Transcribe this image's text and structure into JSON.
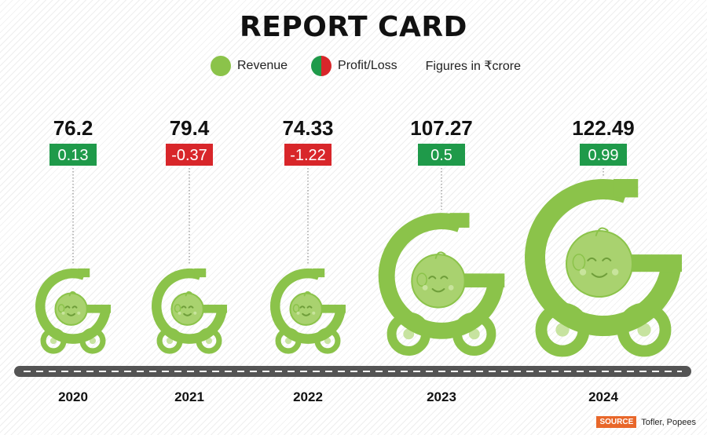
{
  "title": "REPORT CARD",
  "legend": {
    "revenue_label": "Revenue",
    "profit_label": "Profit/Loss",
    "units_note": "Figures in ₹crore"
  },
  "colors": {
    "stroller": "#8bc34a",
    "face": "#a9d26f",
    "profit": "#1f9a4a",
    "loss": "#d8262a",
    "road": "#545454"
  },
  "chart_data": {
    "type": "bar",
    "title": "REPORT CARD",
    "categories": [
      "2020",
      "2021",
      "2022",
      "2023",
      "2024"
    ],
    "series": [
      {
        "name": "Revenue",
        "values": [
          76.2,
          79.4,
          74.33,
          107.27,
          122.49
        ],
        "labels": [
          "76.2",
          "79.4",
          "74.33",
          "107.27",
          "122.49"
        ]
      },
      {
        "name": "Profit/Loss",
        "values": [
          0.13,
          -0.37,
          -1.22,
          0.5,
          0.99
        ],
        "labels": [
          "0.13",
          "-0.37",
          "-1.22",
          "0.5",
          "0.99"
        ]
      }
    ]
  },
  "source": {
    "tag": "SOURCE",
    "text": "Tofler, Popees"
  }
}
